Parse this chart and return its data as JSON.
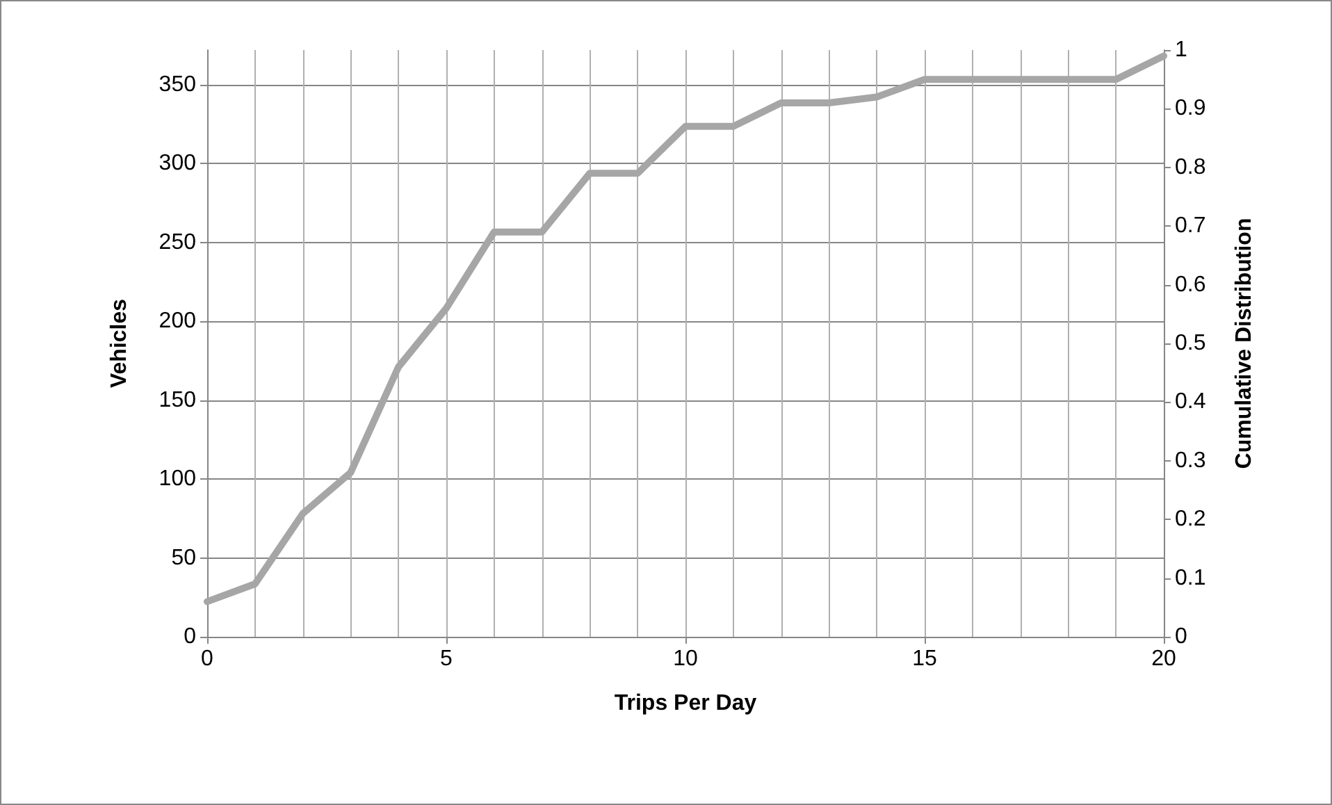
{
  "chart_data": {
    "type": "line",
    "xlabel": "Trips Per Day",
    "ylabel": "Vehicles",
    "y2label": "Cumulative Distribution",
    "x": [
      0,
      1,
      2,
      3,
      4,
      5,
      6,
      7,
      8,
      9,
      10,
      11,
      12,
      13,
      14,
      15,
      16,
      17,
      18,
      19,
      20
    ],
    "series": [
      {
        "color": "#a6a6a6",
        "axis": "y2",
        "values": [
          0.06,
          0.09,
          0.21,
          0.28,
          0.46,
          0.56,
          0.69,
          0.69,
          0.79,
          0.79,
          0.87,
          0.87,
          0.91,
          0.91,
          0.92,
          0.95,
          0.95,
          0.95,
          0.95,
          0.95,
          0.99
        ]
      }
    ],
    "xlim": [
      0,
      20
    ],
    "xticks": [
      0,
      {
        "value": 1,
        "label": null
      },
      {
        "value": 2,
        "label": null
      },
      {
        "value": 3,
        "label": null
      },
      {
        "value": 4,
        "label": null
      },
      5,
      {
        "value": 6,
        "label": null
      },
      {
        "value": 7,
        "label": null
      },
      {
        "value": 8,
        "label": null
      },
      {
        "value": 9,
        "label": null
      },
      10,
      {
        "value": 11,
        "label": null
      },
      {
        "value": 12,
        "label": null
      },
      {
        "value": 13,
        "label": null
      },
      {
        "value": 14,
        "label": null
      },
      15,
      {
        "value": 16,
        "label": null
      },
      {
        "value": 17,
        "label": null
      },
      {
        "value": 18,
        "label": null
      },
      {
        "value": 19,
        "label": null
      },
      20
    ],
    "ylim": [
      0,
      372
    ],
    "yticks": [
      0,
      50,
      100,
      150,
      200,
      250,
      300,
      350
    ],
    "y2lim": [
      0,
      1
    ],
    "y2ticks": [
      0,
      0.1,
      0.2,
      0.3,
      0.4,
      0.5,
      0.6,
      0.7,
      0.8,
      0.9,
      1
    ],
    "grid": true,
    "marker": "none",
    "line_style": "solid"
  }
}
